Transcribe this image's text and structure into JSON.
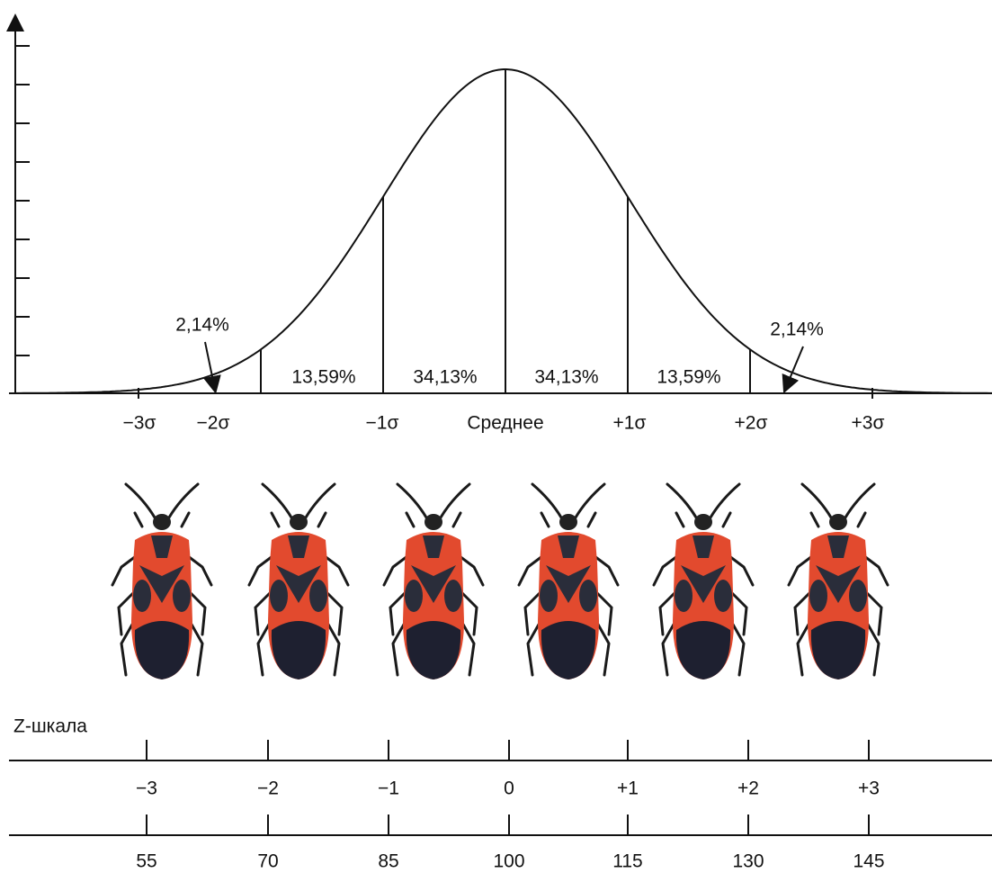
{
  "distribution": {
    "sigma_labels": [
      "−3σ",
      "−2σ",
      "−1σ",
      "Среднее",
      "+1σ",
      "+2σ",
      "+3σ"
    ],
    "area_labels": [
      "13,59%",
      "34,13%",
      "34,13%",
      "13,59%"
    ],
    "tail_labels": [
      "2,14%",
      "2,14%"
    ]
  },
  "z_scale": {
    "title": "Z-шкала",
    "z_labels": [
      "−3",
      "−2",
      "−1",
      "0",
      "+1",
      "+2",
      "+3"
    ],
    "score_labels": [
      "55",
      "70",
      "85",
      "100",
      "115",
      "130",
      "145"
    ]
  }
}
